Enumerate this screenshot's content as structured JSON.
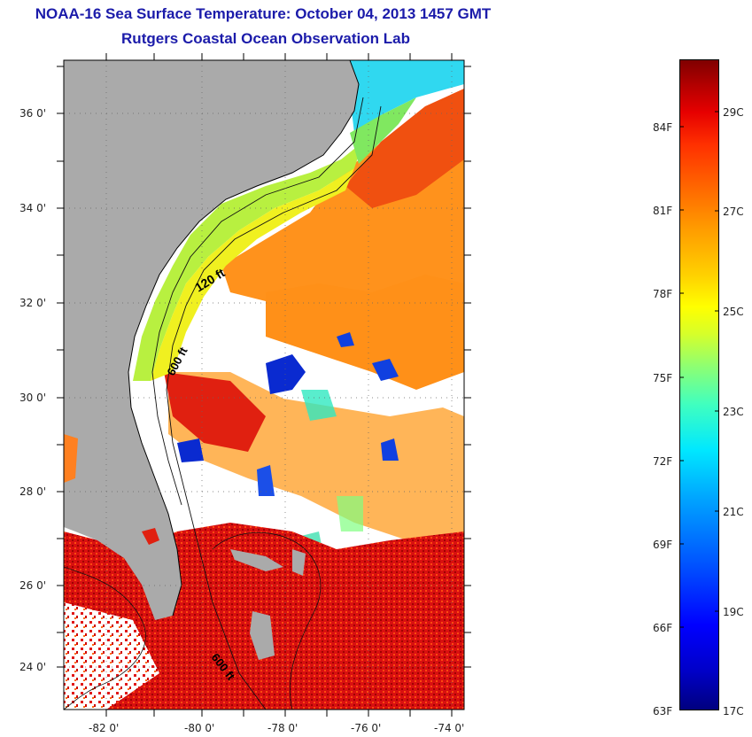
{
  "header": {
    "title": "NOAA-16 Sea Surface Temperature:  October 04, 2013 1457 GMT",
    "subtitle": "Rutgers Coastal Ocean Observation Lab"
  },
  "map": {
    "latitude_labels": [
      "36 0'",
      "34 0'",
      "32 0'",
      "30 0'",
      "28 0'",
      "26 0'",
      "24 0'"
    ],
    "longitude_labels": [
      "-82 0'",
      "-80 0'",
      "-78 0'",
      "-76 0'",
      "-74 0'"
    ],
    "contour_labels": [
      "120 ft",
      "600 ft",
      "600 ft"
    ],
    "colors": {
      "land": "#aaaaaa",
      "cloud": "#ffffff",
      "warm": "#e01010",
      "cool": "#0a2ad0"
    }
  },
  "colorbar": {
    "fahrenheit_labels": [
      "84F",
      "81F",
      "78F",
      "75F",
      "72F",
      "69F",
      "66F",
      "63F"
    ],
    "celsius_labels": [
      "29C",
      "27C",
      "25C",
      "23C",
      "21C",
      "19C",
      "17C"
    ]
  }
}
